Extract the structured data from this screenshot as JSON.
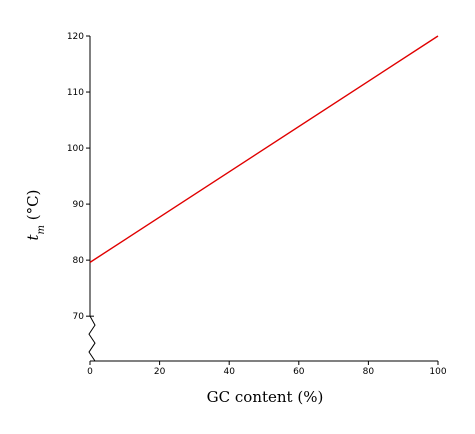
{
  "chart_data": {
    "type": "line",
    "xlabel": "GC content (%)",
    "ylabel_main": "t",
    "ylabel_sub": "m",
    "ylabel_unit": " (°C)",
    "xlim": [
      0,
      100
    ],
    "ylim_display": [
      62,
      120
    ],
    "axis_break": {
      "from": 62,
      "to": 70
    },
    "x_ticks": [
      0,
      20,
      40,
      60,
      80,
      100
    ],
    "y_ticks": [
      70,
      80,
      90,
      100,
      110,
      120
    ],
    "series": [
      {
        "color": "#e00000",
        "x": [
          0,
          100
        ],
        "y": [
          79.6,
          120
        ]
      }
    ],
    "grid": false
  }
}
